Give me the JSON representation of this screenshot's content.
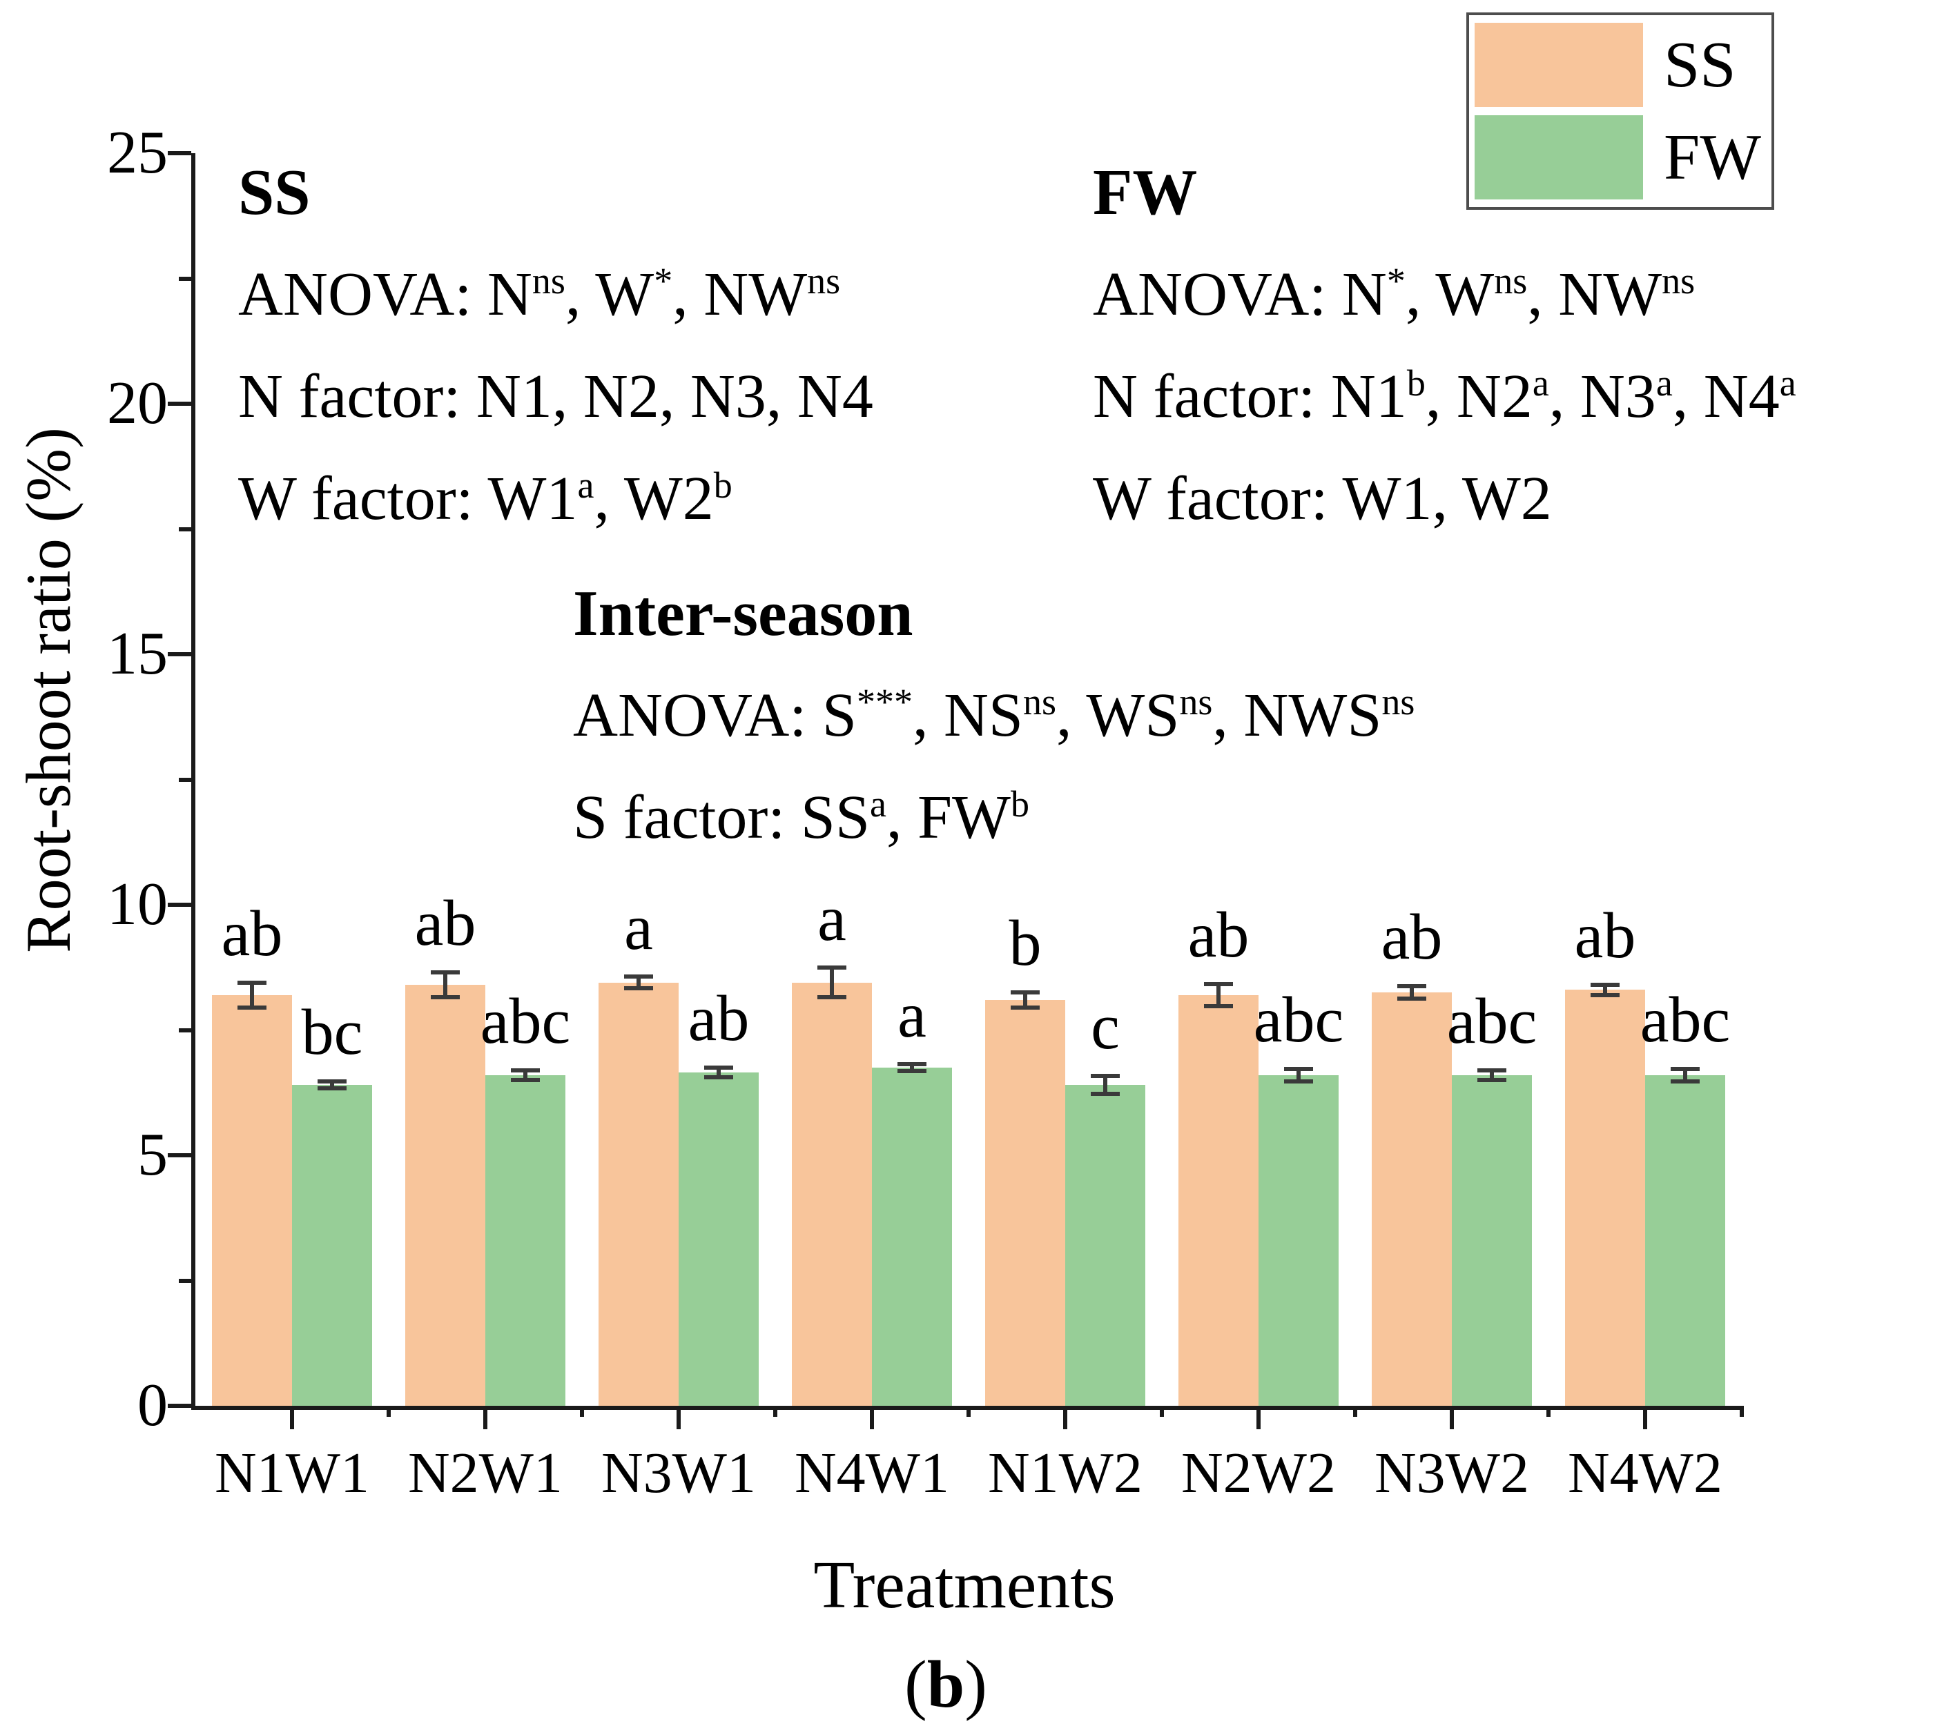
{
  "figure": {
    "background": "#ffffff"
  },
  "legend": {
    "border_color": "#4d4d4d",
    "items": [
      {
        "label": "SS"
      },
      {
        "label": "FW"
      }
    ]
  },
  "annotations": {
    "ss": {
      "title": "SS",
      "lines": [
        "ANOVA: N^{ns}, W^{*}, NW^{ns}",
        "N factor: N1, N2, N3, N4",
        "W factor: W1^{a}, W2^{b}"
      ]
    },
    "fw": {
      "title": "FW",
      "lines": [
        "ANOVA: N^{*}, W^{ns}, NW^{ns}",
        "N factor: N1^{b}, N2^{a}, N3^{a}, N4^{a}",
        "W factor: W1, W2"
      ]
    },
    "inter": {
      "title": "Inter-season",
      "lines": [
        "ANOVA: S^{***}, NS^{ns}, WS^{ns}, NWS^{ns}",
        "S factor: SS^{a}, FW^{b}"
      ]
    }
  },
  "caption": {
    "pre": "(",
    "letter": "b",
    "post": ")"
  },
  "chart_data": {
    "type": "bar",
    "title": "",
    "xlabel": "Treatments",
    "ylabel": "Root-shoot ratio (%)",
    "ylim": [
      0,
      25
    ],
    "yticks": [
      0,
      5,
      10,
      15,
      20,
      25
    ],
    "yminor_step": 2.5,
    "grid": false,
    "legend_position": "top-right",
    "axis_color": "#1a1a1a",
    "error_color": "#3a3a3a",
    "categories": [
      "N1W1",
      "N2W1",
      "N3W1",
      "N4W1",
      "N1W2",
      "N2W2",
      "N3W2",
      "N4W2"
    ],
    "series": [
      {
        "name": "SS",
        "color": "#F8C59B",
        "values": [
          8.2,
          8.4,
          8.45,
          8.45,
          8.1,
          8.2,
          8.25,
          8.3
        ],
        "errors": [
          0.25,
          0.25,
          0.12,
          0.3,
          0.15,
          0.22,
          0.12,
          0.1
        ],
        "letters": [
          "ab",
          "ab",
          "a",
          "a",
          "b",
          "ab",
          "ab",
          "ab"
        ]
      },
      {
        "name": "FW",
        "color": "#97CE97",
        "values": [
          6.4,
          6.6,
          6.65,
          6.75,
          6.4,
          6.6,
          6.6,
          6.6
        ],
        "errors": [
          0.07,
          0.1,
          0.1,
          0.07,
          0.18,
          0.12,
          0.1,
          0.12
        ],
        "letters": [
          "bc",
          "abc",
          "ab",
          "a",
          "c",
          "abc",
          "abc",
          "abc"
        ]
      }
    ]
  }
}
